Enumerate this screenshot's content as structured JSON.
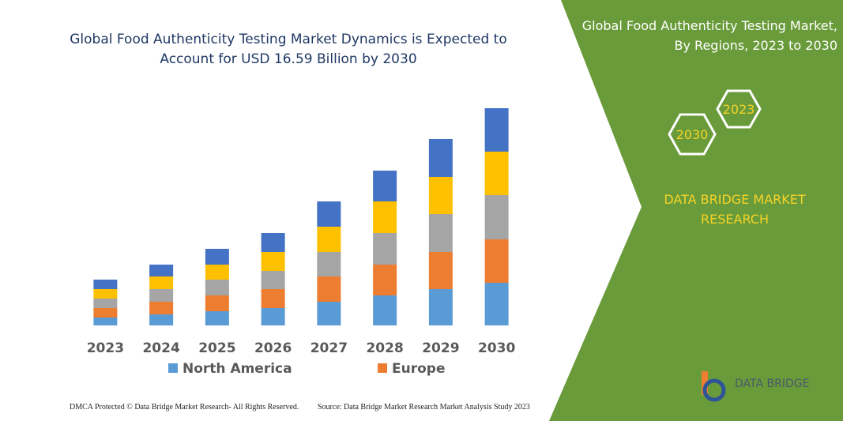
{
  "chart_data": {
    "type": "stacked-bar",
    "title": "Global Food Authenticity Testing Market Dynamics is Expected to Account for USD 16.59 Billion by 2030",
    "categories": [
      "2023",
      "2024",
      "2025",
      "2026",
      "2027",
      "2028",
      "2029",
      "2030"
    ],
    "series": [
      {
        "name": "North America",
        "color": "#5b9bd5",
        "values": [
          10,
          14,
          18,
          22,
          30,
          38,
          46,
          54
        ]
      },
      {
        "name": "Europe",
        "color": "#ed7d31",
        "values": [
          12,
          16,
          20,
          24,
          32,
          39,
          47,
          55
        ]
      },
      {
        "color": "#a5a5a5",
        "values": [
          12,
          16,
          20,
          23,
          31,
          40,
          48,
          56
        ]
      },
      {
        "color": "#ffc000",
        "values": [
          12,
          16,
          19,
          24,
          32,
          40,
          47,
          55
        ]
      },
      {
        "color": "#4472c4",
        "values": [
          12,
          15,
          20,
          24,
          32,
          39,
          48,
          55
        ]
      }
    ],
    "ylim": [
      0,
      300
    ]
  },
  "panel": {
    "title": "Global Food Authenticity Testing Market, By Regions, 2023 to 2030",
    "hex_start": "2023",
    "hex_end": "2030",
    "brand": "DATA BRIDGE MARKET RESEARCH",
    "logo": "DATA BRIDGE"
  },
  "footer": {
    "rights": "DMCA Protected © Data Bridge Market Research- All Rights Reserved.",
    "source": "Source: Data Bridge Market Research  Market Analysis Study 2023"
  }
}
